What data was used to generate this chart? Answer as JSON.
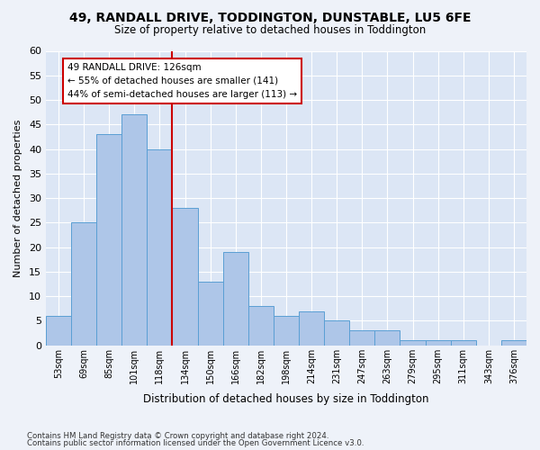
{
  "title": "49, RANDALL DRIVE, TODDINGTON, DUNSTABLE, LU5 6FE",
  "subtitle": "Size of property relative to detached houses in Toddington",
  "xlabel": "Distribution of detached houses by size in Toddington",
  "ylabel": "Number of detached properties",
  "bar_values": [
    6,
    25,
    43,
    47,
    40,
    28,
    13,
    19,
    8,
    6,
    7,
    5,
    3,
    3,
    1,
    1,
    1,
    0,
    1
  ],
  "bin_labels": [
    "53sqm",
    "69sqm",
    "85sqm",
    "101sqm",
    "118sqm",
    "134sqm",
    "150sqm",
    "166sqm",
    "182sqm",
    "198sqm",
    "214sqm",
    "231sqm",
    "247sqm",
    "263sqm",
    "279sqm",
    "295sqm",
    "311sqm",
    "343sqm",
    "376sqm"
  ],
  "bar_color": "#aec6e8",
  "bar_edge_color": "#5a9fd4",
  "vline_x": 4.5,
  "vline_color": "#cc0000",
  "annotation_title": "49 RANDALL DRIVE: 126sqm",
  "annotation_line1": "← 55% of detached houses are smaller (141)",
  "annotation_line2": "44% of semi-detached houses are larger (113) →",
  "annotation_box_color": "#cc0000",
  "ylim": [
    0,
    60
  ],
  "yticks": [
    0,
    5,
    10,
    15,
    20,
    25,
    30,
    35,
    40,
    45,
    50,
    55,
    60
  ],
  "footnote1": "Contains HM Land Registry data © Crown copyright and database right 2024.",
  "footnote2": "Contains public sector information licensed under the Open Government Licence v3.0.",
  "fig_bg_color": "#eef2f9",
  "plot_bg_color": "#dce6f5"
}
